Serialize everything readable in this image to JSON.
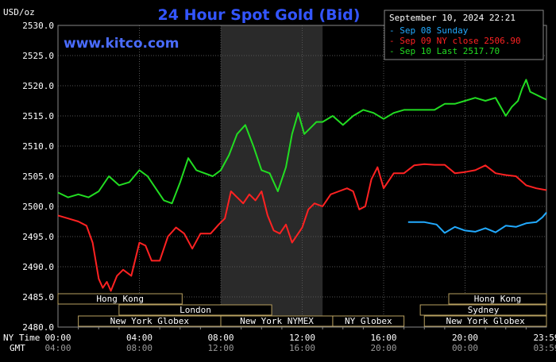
{
  "chart_data": {
    "type": "line",
    "title": "24 Hour Spot Gold (Bid)",
    "unit_label": "USD/oz",
    "watermark": "www.kitco.com",
    "datetime": "September 10, 2024 22:21",
    "ylim": [
      2480,
      2530
    ],
    "y_ticks": [
      "2530.0",
      "2525.0",
      "2520.0",
      "2515.0",
      "2510.0",
      "2505.0",
      "2500.0",
      "2495.0",
      "2490.0",
      "2485.0",
      "2480.0"
    ],
    "x_ticks_ny": [
      "00:00",
      "04:00",
      "08:00",
      "12:00",
      "16:00",
      "20:00",
      "23:59"
    ],
    "x_ticks_gmt": [
      "04:00",
      "08:00",
      "12:00",
      "16:00",
      "20:00",
      "00:00",
      "03:59"
    ],
    "x_tick_hours": [
      0,
      4,
      8,
      12,
      16,
      20,
      24
    ],
    "row_label_ny": "NY Time",
    "row_label_gmt": "GMT",
    "shaded_hours": [
      8,
      13
    ],
    "grid": true,
    "legend_position": "top-right",
    "series": [
      {
        "name": "Sep 08 Sunday",
        "legend": "Sep 08 Sunday",
        "color": "#22aaff",
        "x": [
          17.2,
          18.0,
          18.6,
          19.0,
          19.5,
          20.0,
          20.5,
          21.0,
          21.5,
          22.0,
          22.5,
          23.0,
          23.5,
          23.8,
          24.0
        ],
        "y": [
          2497.4,
          2497.4,
          2497.0,
          2495.6,
          2496.6,
          2496.0,
          2495.8,
          2496.4,
          2495.7,
          2496.8,
          2496.6,
          2497.2,
          2497.4,
          2498.2,
          2499.0
        ]
      },
      {
        "name": "Sep 09 NY close",
        "legend": "Sep 09 NY close 2506.90",
        "color": "#ff2222",
        "x": [
          0.0,
          0.5,
          1.0,
          1.4,
          1.7,
          2.0,
          2.2,
          2.4,
          2.6,
          2.9,
          3.2,
          3.6,
          4.0,
          4.3,
          4.6,
          5.0,
          5.4,
          5.8,
          6.2,
          6.6,
          7.0,
          7.5,
          7.9,
          8.2,
          8.5,
          8.8,
          9.1,
          9.4,
          9.7,
          10.0,
          10.3,
          10.6,
          10.9,
          11.2,
          11.5,
          11.8,
          12.0,
          12.3,
          12.6,
          13.0,
          13.4,
          13.8,
          14.2,
          14.5,
          14.8,
          15.1,
          15.4,
          15.7,
          16.0,
          16.5,
          17.0,
          17.5,
          18.0,
          18.5,
          19.0,
          19.5,
          20.0,
          20.5,
          21.0,
          21.5,
          22.0,
          22.5,
          23.0,
          23.5,
          24.0
        ],
        "y": [
          2498.5,
          2498.0,
          2497.5,
          2496.8,
          2494.0,
          2488.0,
          2486.5,
          2487.5,
          2486.0,
          2488.5,
          2489.5,
          2488.5,
          2494.0,
          2493.5,
          2491.0,
          2491.0,
          2495.0,
          2496.5,
          2495.5,
          2493.0,
          2495.5,
          2495.5,
          2497.0,
          2498.0,
          2502.5,
          2501.5,
          2500.5,
          2502.0,
          2501.0,
          2502.5,
          2498.5,
          2496.0,
          2495.5,
          2497.0,
          2494.0,
          2495.5,
          2496.5,
          2499.5,
          2500.5,
          2500.0,
          2502.0,
          2502.5,
          2503.0,
          2502.5,
          2499.5,
          2500.0,
          2504.5,
          2506.5,
          2503.0,
          2505.5,
          2505.5,
          2506.8,
          2507.0,
          2506.9,
          2506.9,
          2505.5,
          2505.7,
          2506.0,
          2506.8,
          2505.5,
          2505.2,
          2505.0,
          2503.5,
          2503.0,
          2502.7
        ]
      },
      {
        "name": "Sep 10 Last",
        "legend": "Sep 10 Last 2517.70",
        "color": "#22dd22",
        "x": [
          0.0,
          0.5,
          1.0,
          1.5,
          2.0,
          2.5,
          3.0,
          3.5,
          4.0,
          4.4,
          4.8,
          5.2,
          5.6,
          6.0,
          6.4,
          6.8,
          7.2,
          7.6,
          8.0,
          8.4,
          8.8,
          9.2,
          9.6,
          10.0,
          10.4,
          10.8,
          11.2,
          11.5,
          11.8,
          12.1,
          12.4,
          12.7,
          13.0,
          13.5,
          14.0,
          14.5,
          15.0,
          15.5,
          16.0,
          16.5,
          17.0,
          17.5,
          18.0,
          18.5,
          19.0,
          19.5,
          20.0,
          20.5,
          21.0,
          21.5,
          22.0,
          22.3,
          22.6,
          22.8,
          23.0,
          23.2,
          23.5,
          23.8,
          24.0
        ],
        "y": [
          2502.3,
          2501.5,
          2502.0,
          2501.5,
          2502.5,
          2505.0,
          2503.5,
          2504.0,
          2506.0,
          2505.0,
          2503.0,
          2501.0,
          2500.5,
          2504.0,
          2508.0,
          2506.0,
          2505.5,
          2505.0,
          2506.0,
          2508.5,
          2512.0,
          2513.5,
          2510.0,
          2506.0,
          2505.5,
          2502.5,
          2506.5,
          2512.0,
          2515.5,
          2512.0,
          2513.0,
          2514.0,
          2514.0,
          2515.0,
          2513.5,
          2515.0,
          2516.0,
          2515.5,
          2514.5,
          2515.5,
          2516.0,
          2516.0,
          2516.0,
          2516.0,
          2517.0,
          2517.0,
          2517.5,
          2518.0,
          2517.5,
          2518.0,
          2515.0,
          2516.5,
          2517.5,
          2519.5,
          2521.0,
          2519.0,
          2518.5,
          2518.0,
          2517.7
        ]
      }
    ],
    "sessions": {
      "row1": [
        {
          "label": "Hong Kong",
          "start": 0.0,
          "end": 6.1
        },
        {
          "label": "Hong Kong",
          "start": 19.2,
          "end": 24.0
        }
      ],
      "row2": [
        {
          "label": "London",
          "start": 3.0,
          "end": 10.5
        }
      ],
      "row3": [
        {
          "label": "Sydney",
          "start": 17.8,
          "end": 24.0
        }
      ],
      "row4": [
        {
          "label": "New York Globex",
          "start": 1.0,
          "end": 8.0
        },
        {
          "label": "New York NYMEX",
          "start": 8.0,
          "end": 13.5
        },
        {
          "label": "NY Globex",
          "start": 13.5,
          "end": 17.0
        },
        {
          "label": "New York Globex",
          "start": 18.0,
          "end": 24.0
        }
      ]
    }
  }
}
